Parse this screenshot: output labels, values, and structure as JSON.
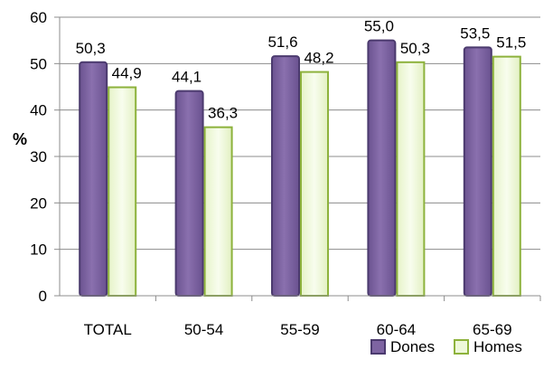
{
  "chart_data": {
    "type": "bar",
    "categories": [
      "TOTAL",
      "50-54",
      "55-59",
      "60-64",
      "65-69"
    ],
    "series": [
      {
        "name": "Dones",
        "values": [
          50.3,
          44.1,
          51.6,
          55.0,
          53.5
        ],
        "labels": [
          "50,3",
          "44,1",
          "51,6",
          "55,0",
          "53,5"
        ],
        "color": "#7E64A2",
        "edge": "#4B3A6E"
      },
      {
        "name": "Homes",
        "values": [
          44.9,
          36.3,
          48.2,
          50.3,
          51.5
        ],
        "labels": [
          "44,9",
          "36,3",
          "48,2",
          "50,3",
          "51,5"
        ],
        "color": "#EEF8DA",
        "edge": "#8DB23C"
      }
    ],
    "ylabel": "%",
    "ylim": [
      0,
      60
    ],
    "yticks": [
      0,
      10,
      20,
      30,
      40,
      50,
      60
    ],
    "grid": true,
    "legend": "bottom-right"
  }
}
